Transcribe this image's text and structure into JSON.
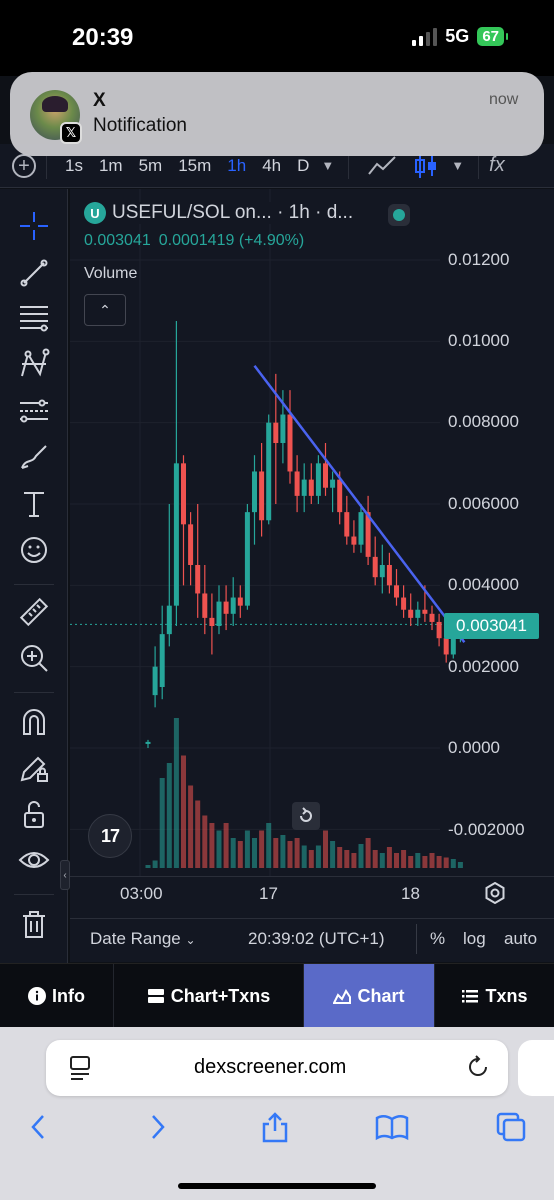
{
  "status_bar": {
    "time": "20:39",
    "network": "5G",
    "battery": "67"
  },
  "notification": {
    "app": "X",
    "body": "Notification",
    "time": "now",
    "badge": "𝕏"
  },
  "timeframes": {
    "items": [
      {
        "label": "1s",
        "active": false
      },
      {
        "label": "1m",
        "active": false
      },
      {
        "label": "5m",
        "active": false
      },
      {
        "label": "15m",
        "active": false
      },
      {
        "label": "1h",
        "active": true
      },
      {
        "label": "4h",
        "active": false
      },
      {
        "label": "D",
        "active": false
      }
    ],
    "fx_label": "fx"
  },
  "legend": {
    "pair": "USEFUL/SOL on... · 1h · d...",
    "price": "0.003041",
    "change": "0.0001419 (+4.90%)",
    "volume_label": "Volume",
    "collapse_glyph": "⌃"
  },
  "y_axis": {
    "labels": [
      "0.01200",
      "0.01000",
      "0.008000",
      "0.006000",
      "0.004000",
      "0.002000",
      "0.0000",
      "-0.002000"
    ],
    "current_price": "0.003041"
  },
  "x_axis": {
    "labels": [
      "03:00",
      "17",
      "18"
    ]
  },
  "chart_logo": "17",
  "range_bar": {
    "date_range": "Date Range",
    "time": "20:39:02 (UTC+1)",
    "percent": "%",
    "log": "log",
    "auto": "auto"
  },
  "tabs": [
    {
      "label": "Info",
      "active": false
    },
    {
      "label": "Chart+Txns",
      "active": false
    },
    {
      "label": "Chart",
      "active": true
    },
    {
      "label": "Txns",
      "active": false
    }
  ],
  "browser": {
    "url": "dexscreener.com"
  },
  "colors": {
    "up": "#26a69a",
    "down": "#ef5350",
    "trendline": "#4a63f0",
    "active_tab": "#5a6ac8"
  },
  "chart_data": {
    "type": "candlestick",
    "y_range": [
      -0.002,
      0.012
    ],
    "last_price": 0.003041,
    "candles": [
      {
        "o": 0.0001,
        "h": 0.0002,
        "l": 0.0,
        "c": 0.00015
      },
      {
        "o": 0.0013,
        "h": 0.0025,
        "l": 0.001,
        "c": 0.002
      },
      {
        "o": 0.0015,
        "h": 0.0035,
        "l": 0.0012,
        "c": 0.0028
      },
      {
        "o": 0.0028,
        "h": 0.006,
        "l": 0.0025,
        "c": 0.0035
      },
      {
        "o": 0.0035,
        "h": 0.0105,
        "l": 0.003,
        "c": 0.007
      },
      {
        "o": 0.007,
        "h": 0.0072,
        "l": 0.004,
        "c": 0.0055
      },
      {
        "o": 0.0055,
        "h": 0.0058,
        "l": 0.004,
        "c": 0.0045
      },
      {
        "o": 0.0045,
        "h": 0.006,
        "l": 0.0032,
        "c": 0.0038
      },
      {
        "o": 0.0038,
        "h": 0.0045,
        "l": 0.0028,
        "c": 0.0032
      },
      {
        "o": 0.0032,
        "h": 0.0038,
        "l": 0.0023,
        "c": 0.003
      },
      {
        "o": 0.003,
        "h": 0.004,
        "l": 0.0028,
        "c": 0.0036
      },
      {
        "o": 0.0036,
        "h": 0.004,
        "l": 0.0029,
        "c": 0.0033
      },
      {
        "o": 0.0033,
        "h": 0.0042,
        "l": 0.003,
        "c": 0.0037
      },
      {
        "o": 0.0037,
        "h": 0.004,
        "l": 0.0032,
        "c": 0.0035
      },
      {
        "o": 0.0035,
        "h": 0.006,
        "l": 0.0034,
        "c": 0.0058
      },
      {
        "o": 0.0058,
        "h": 0.0072,
        "l": 0.005,
        "c": 0.0068
      },
      {
        "o": 0.0068,
        "h": 0.0075,
        "l": 0.0052,
        "c": 0.0056
      },
      {
        "o": 0.0056,
        "h": 0.0082,
        "l": 0.0055,
        "c": 0.008
      },
      {
        "o": 0.008,
        "h": 0.0092,
        "l": 0.006,
        "c": 0.0075
      },
      {
        "o": 0.0075,
        "h": 0.0088,
        "l": 0.007,
        "c": 0.0082
      },
      {
        "o": 0.0082,
        "h": 0.0088,
        "l": 0.0065,
        "c": 0.0068
      },
      {
        "o": 0.0068,
        "h": 0.0072,
        "l": 0.0058,
        "c": 0.0062
      },
      {
        "o": 0.0062,
        "h": 0.007,
        "l": 0.0058,
        "c": 0.0066
      },
      {
        "o": 0.0066,
        "h": 0.007,
        "l": 0.006,
        "c": 0.0062
      },
      {
        "o": 0.0062,
        "h": 0.0072,
        "l": 0.006,
        "c": 0.007
      },
      {
        "o": 0.007,
        "h": 0.0075,
        "l": 0.0062,
        "c": 0.0064
      },
      {
        "o": 0.0064,
        "h": 0.0068,
        "l": 0.0058,
        "c": 0.0066
      },
      {
        "o": 0.0066,
        "h": 0.0068,
        "l": 0.0055,
        "c": 0.0058
      },
      {
        "o": 0.0058,
        "h": 0.0062,
        "l": 0.005,
        "c": 0.0052
      },
      {
        "o": 0.0052,
        "h": 0.0056,
        "l": 0.0048,
        "c": 0.005
      },
      {
        "o": 0.005,
        "h": 0.006,
        "l": 0.0048,
        "c": 0.0058
      },
      {
        "o": 0.0058,
        "h": 0.0062,
        "l": 0.0045,
        "c": 0.0047
      },
      {
        "o": 0.0047,
        "h": 0.0052,
        "l": 0.004,
        "c": 0.0042
      },
      {
        "o": 0.0042,
        "h": 0.005,
        "l": 0.0038,
        "c": 0.0045
      },
      {
        "o": 0.0045,
        "h": 0.0048,
        "l": 0.0038,
        "c": 0.004
      },
      {
        "o": 0.004,
        "h": 0.0044,
        "l": 0.0035,
        "c": 0.0037
      },
      {
        "o": 0.0037,
        "h": 0.004,
        "l": 0.0032,
        "c": 0.0034
      },
      {
        "o": 0.0034,
        "h": 0.0038,
        "l": 0.003,
        "c": 0.0032
      },
      {
        "o": 0.0032,
        "h": 0.0036,
        "l": 0.003,
        "c": 0.0034
      },
      {
        "o": 0.0034,
        "h": 0.004,
        "l": 0.0031,
        "c": 0.0033
      },
      {
        "o": 0.0033,
        "h": 0.0035,
        "l": 0.0029,
        "c": 0.0031
      },
      {
        "o": 0.0031,
        "h": 0.0033,
        "l": 0.0025,
        "c": 0.0027
      },
      {
        "o": 0.0027,
        "h": 0.003,
        "l": 0.0021,
        "c": 0.0023
      },
      {
        "o": 0.0023,
        "h": 0.003,
        "l": 0.0022,
        "c": 0.0029
      },
      {
        "o": 0.0029,
        "h": 0.0032,
        "l": 0.0026,
        "c": 0.003
      }
    ],
    "volumes": [
      0.02,
      0.05,
      0.6,
      0.7,
      1.0,
      0.75,
      0.55,
      0.45,
      0.35,
      0.3,
      0.25,
      0.3,
      0.2,
      0.18,
      0.25,
      0.2,
      0.25,
      0.3,
      0.2,
      0.22,
      0.18,
      0.2,
      0.15,
      0.12,
      0.15,
      0.25,
      0.18,
      0.14,
      0.12,
      0.1,
      0.16,
      0.2,
      0.12,
      0.1,
      0.14,
      0.1,
      0.12,
      0.08,
      0.1,
      0.08,
      0.1,
      0.08,
      0.07,
      0.06,
      0.04
    ],
    "trendline": {
      "from_index": 15,
      "from_price": 0.0094,
      "to_index": 44,
      "to_price": 0.0026
    }
  }
}
